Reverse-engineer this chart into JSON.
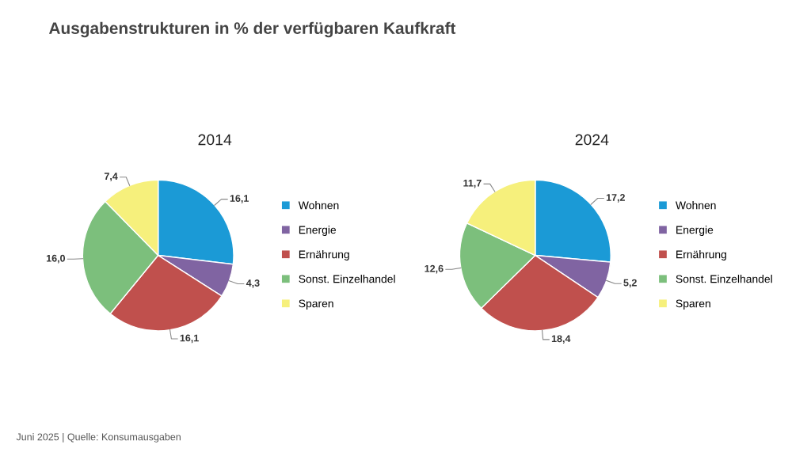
{
  "chart_data": [
    {
      "type": "pie",
      "title": "2014",
      "categories": [
        "Wohnen",
        "Energie",
        "Ernährung",
        "Sonst. Einzelhandel",
        "Sparen"
      ],
      "values": [
        16.1,
        4.3,
        16.1,
        16.0,
        7.4
      ],
      "value_labels": [
        "16,1",
        "4,3",
        "16,1",
        "16,0",
        "7,4"
      ],
      "colors": [
        "#1b9ad6",
        "#8064a2",
        "#c0504d",
        "#7cbf7c",
        "#f6f07c"
      ],
      "legend": "right",
      "annotations": [
        "Ausgabenstrukturen in % der verfügbaren Kaufkraft",
        "Juni 2025 | Quelle: Konsumausgaben"
      ]
    },
    {
      "type": "pie",
      "title": "2024",
      "categories": [
        "Wohnen",
        "Energie",
        "Ernährung",
        "Sonst. Einzelhandel",
        "Sparen"
      ],
      "values": [
        17.2,
        5.2,
        18.4,
        12.6,
        11.7
      ],
      "value_labels": [
        "17,2",
        "5,2",
        "18,4",
        "12,6",
        "11,7"
      ],
      "colors": [
        "#1b9ad6",
        "#8064a2",
        "#c0504d",
        "#7cbf7c",
        "#f6f07c"
      ],
      "legend": "right"
    }
  ]
}
